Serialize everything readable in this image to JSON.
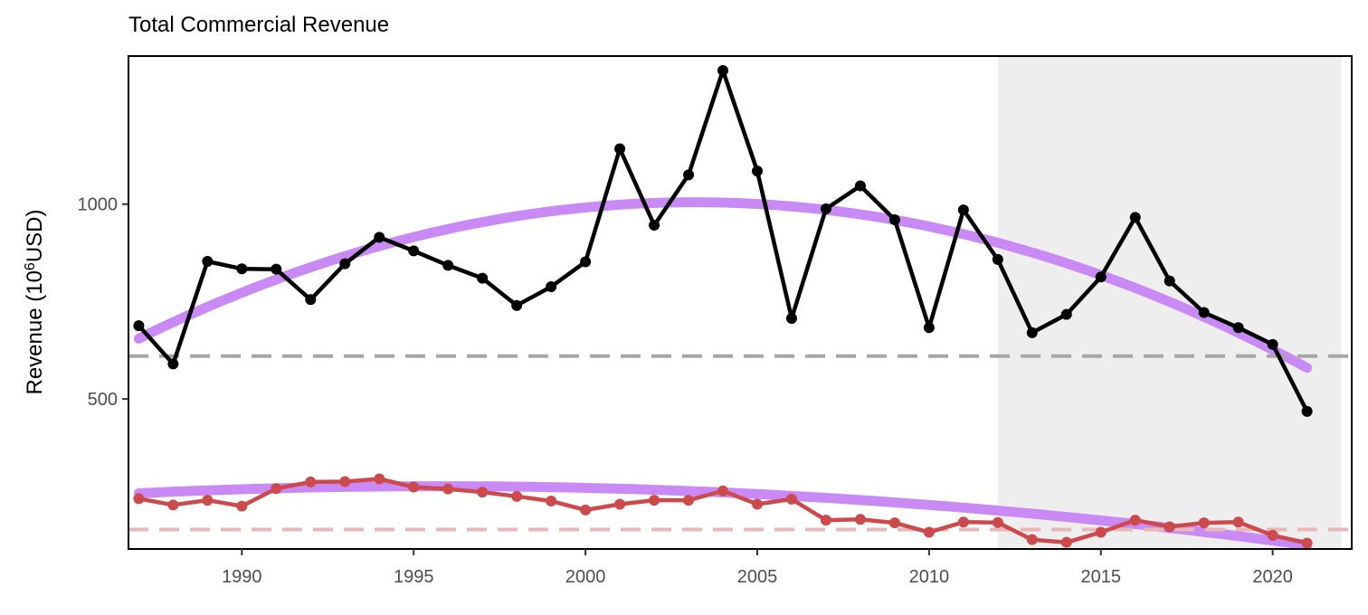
{
  "chart_data": {
    "type": "line",
    "title": "Total Commercial Revenue",
    "xlabel": "",
    "ylabel": "Revenue (10",
    "ylabel_sup": "6",
    "ylabel_rest": "USD)",
    "xlim": [
      1986.7,
      2022.3
    ],
    "ylim": [
      115,
      1380
    ],
    "xticks": [
      1990,
      1995,
      2000,
      2005,
      2010,
      2015,
      2020
    ],
    "yticks": [
      500,
      1000
    ],
    "shaded_region": [
      2012,
      2022
    ],
    "x": [
      1987,
      1988,
      1989,
      1990,
      1991,
      1992,
      1993,
      1994,
      1995,
      1996,
      1997,
      1998,
      1999,
      2000,
      2001,
      2002,
      2003,
      2004,
      2005,
      2006,
      2007,
      2008,
      2009,
      2010,
      2011,
      2012,
      2013,
      2014,
      2015,
      2016,
      2017,
      2018,
      2019,
      2020,
      2021
    ],
    "series": [
      {
        "color": "#000000",
        "values": [
          688,
          590,
          853,
          834,
          833,
          755,
          847,
          915,
          880,
          843,
          810,
          740,
          788,
          852,
          1142,
          946,
          1075,
          1343,
          1085,
          707,
          988,
          1047,
          960,
          683,
          985,
          858,
          670,
          717,
          813,
          966,
          803,
          722,
          683,
          640,
          468
        ],
        "mean_line": 610,
        "mean_color": "#a6a6a6",
        "trend": [
          655,
          1004,
          580
        ],
        "trend_color": "#c684f5"
      },
      {
        "color": "#cd4a4c",
        "values": [
          244,
          228,
          240,
          225,
          270,
          287,
          288,
          295,
          274,
          269,
          261,
          250,
          238,
          215,
          230,
          240,
          240,
          264,
          230,
          243,
          189,
          191,
          182,
          158,
          184,
          183,
          139,
          132,
          158,
          189,
          172,
          182,
          184,
          150,
          130
        ],
        "mean_line": 165,
        "mean_color": "#e7b7b9",
        "trend": [
          258,
          260,
          125
        ],
        "trend_color": "#c684f5"
      }
    ]
  }
}
